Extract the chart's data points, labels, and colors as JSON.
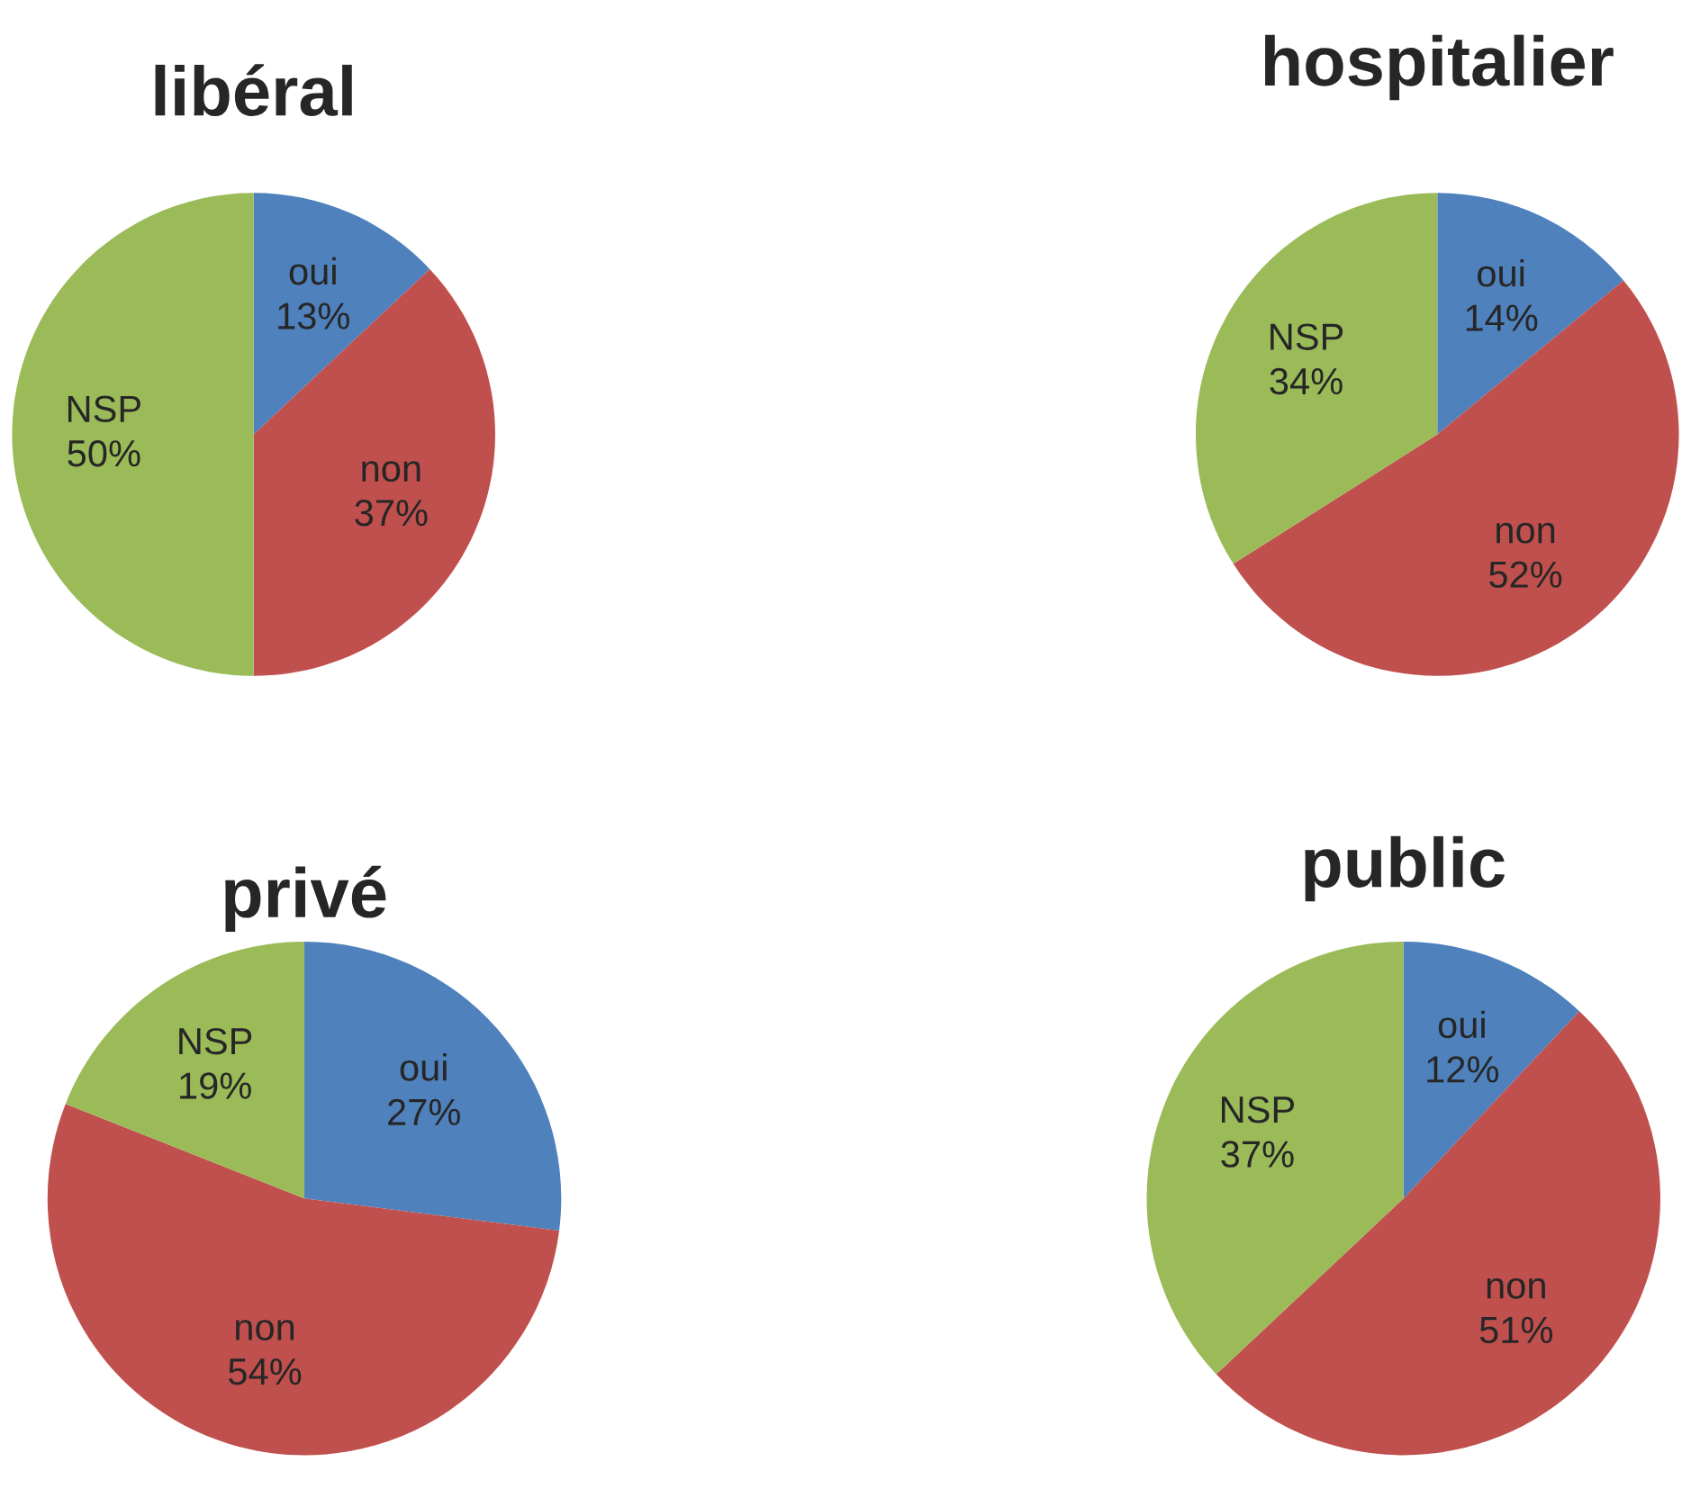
{
  "chart_data": [
    {
      "type": "pie",
      "title": "libéral",
      "categories": [
        "oui",
        "non",
        "NSP"
      ],
      "values": [
        13,
        37,
        50
      ],
      "value_labels": [
        "13%",
        "37%",
        "50%"
      ],
      "colors": [
        "#4f81bd",
        "#c0504d",
        "#9bbb59"
      ]
    },
    {
      "type": "pie",
      "title": "hospitalier",
      "categories": [
        "oui",
        "non",
        "NSP"
      ],
      "values": [
        14,
        52,
        34
      ],
      "value_labels": [
        "14%",
        "52%",
        "34%"
      ],
      "colors": [
        "#4f81bd",
        "#c0504d",
        "#9bbb59"
      ]
    },
    {
      "type": "pie",
      "title": "privé",
      "categories": [
        "oui",
        "non",
        "NSP"
      ],
      "values": [
        27,
        54,
        19
      ],
      "value_labels": [
        "27%",
        "54%",
        "19%"
      ],
      "colors": [
        "#4f81bd",
        "#c0504d",
        "#9bbb59"
      ]
    },
    {
      "type": "pie",
      "title": "public",
      "categories": [
        "oui",
        "non",
        "NSP"
      ],
      "values": [
        12,
        51,
        37
      ],
      "value_labels": [
        "12%",
        "51%",
        "37%"
      ],
      "colors": [
        "#4f81bd",
        "#c0504d",
        "#9bbb59"
      ]
    }
  ]
}
